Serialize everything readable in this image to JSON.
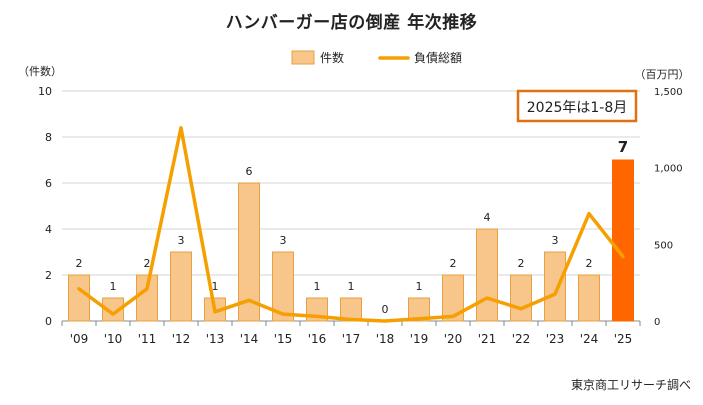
{
  "chart_data": {
    "type": "bar+line",
    "title": "ハンバーガー店の倒産  年次推移",
    "left_axis_unit": "（件数）",
    "right_axis_unit": "（百万円）",
    "left_ylim": [
      0,
      10
    ],
    "left_ticks": [
      "0",
      "2",
      "4",
      "6",
      "8",
      "10"
    ],
    "right_ylim": [
      0,
      1500
    ],
    "right_ticks": [
      "0",
      "500",
      "1,000",
      "1,500"
    ],
    "categories": [
      "'09",
      "'10",
      "'11",
      "'12",
      "'13",
      "'14",
      "'15",
      "'16",
      "'17",
      "'18",
      "'19",
      "'20",
      "'21",
      "'22",
      "'23",
      "'24",
      "'25"
    ],
    "series": [
      {
        "name": "件数",
        "kind": "bar",
        "axis": "left",
        "values": [
          2,
          1,
          2,
          3,
          1,
          6,
          3,
          1,
          1,
          0,
          1,
          2,
          4,
          2,
          3,
          2,
          7
        ],
        "color": "#f8c58b",
        "edge_color": "#e8a040",
        "highlight_color": "#ff6600",
        "highlight_index": 16
      },
      {
        "name": "負債総額",
        "kind": "line",
        "axis": "right",
        "values": [
          210,
          45,
          210,
          1260,
          60,
          135,
          45,
          30,
          10,
          0,
          15,
          30,
          150,
          80,
          175,
          700,
          420
        ],
        "color": "#f5a000"
      }
    ],
    "annotation": "2025年は1-8月",
    "annotation_color": "#e07010",
    "grid": true,
    "legend": "top-center"
  },
  "source_note": "東京商工リサーチ調べ"
}
